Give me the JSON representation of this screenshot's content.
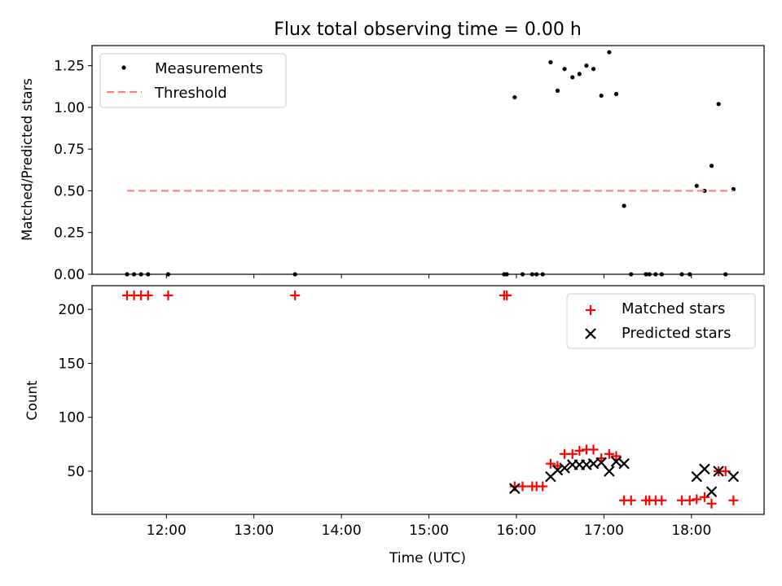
{
  "chart_data": [
    {
      "type": "scatter",
      "title": "Flux total observing time = 0.00 h",
      "xlabel": "",
      "ylabel": "Matched/Predicted stars",
      "ylim": [
        0,
        1.37
      ],
      "yticks": [
        0,
        0.25,
        0.5,
        0.75,
        1.0,
        1.25
      ],
      "ytick_labels": [
        "0.00",
        "0.25",
        "0.50",
        "0.75",
        "1.00",
        "1.25"
      ],
      "xlim": [
        11.15,
        18.83
      ],
      "xticks": [
        12,
        13,
        14,
        15,
        16,
        17,
        18
      ],
      "legend_position": "top-left",
      "series": [
        {
          "name": "Measurements",
          "marker": "dot",
          "color": "#000000",
          "points": [
            [
              11.55,
              0
            ],
            [
              11.63,
              0
            ],
            [
              11.71,
              0
            ],
            [
              11.79,
              0
            ],
            [
              12.02,
              0
            ],
            [
              13.47,
              0
            ],
            [
              15.86,
              0
            ],
            [
              15.89,
              0
            ],
            [
              15.98,
              1.06
            ],
            [
              16.07,
              0
            ],
            [
              16.18,
              0
            ],
            [
              16.23,
              0
            ],
            [
              16.3,
              0
            ],
            [
              16.39,
              1.27
            ],
            [
              16.47,
              1.1
            ],
            [
              16.55,
              1.23
            ],
            [
              16.64,
              1.18
            ],
            [
              16.72,
              1.2
            ],
            [
              16.8,
              1.25
            ],
            [
              16.88,
              1.23
            ],
            [
              16.97,
              1.07
            ],
            [
              17.06,
              1.33
            ],
            [
              17.14,
              1.08
            ],
            [
              17.23,
              0.41
            ],
            [
              17.31,
              0
            ],
            [
              17.48,
              0
            ],
            [
              17.52,
              0
            ],
            [
              17.59,
              0
            ],
            [
              17.66,
              0
            ],
            [
              17.89,
              0
            ],
            [
              17.98,
              0
            ],
            [
              18.06,
              0.53
            ],
            [
              18.15,
              0.5
            ],
            [
              18.23,
              0.65
            ],
            [
              18.31,
              1.02
            ],
            [
              18.39,
              0
            ],
            [
              18.48,
              0.51
            ]
          ]
        },
        {
          "name": "Threshold",
          "style": "dashed",
          "color": "#ff7f7f",
          "points": [
            [
              11.55,
              0.5
            ],
            [
              18.48,
              0.5
            ]
          ]
        }
      ]
    },
    {
      "type": "scatter",
      "title": "",
      "xlabel": "Time (UTC)",
      "ylabel": "Count",
      "ylim": [
        10,
        222
      ],
      "yticks": [
        50,
        100,
        150,
        200
      ],
      "ytick_labels": [
        "50",
        "100",
        "150",
        "200"
      ],
      "xlim": [
        11.15,
        18.83
      ],
      "xticks": [
        12,
        13,
        14,
        15,
        16,
        17,
        18
      ],
      "xtick_labels": [
        "12:00",
        "13:00",
        "14:00",
        "15:00",
        "16:00",
        "17:00",
        "18:00"
      ],
      "legend_position": "top-right",
      "series": [
        {
          "name": "Matched stars",
          "marker": "plus",
          "color": "#ff0000",
          "points": [
            [
              11.55,
              213
            ],
            [
              11.63,
              213
            ],
            [
              11.71,
              213
            ],
            [
              11.79,
              213
            ],
            [
              12.02,
              213
            ],
            [
              13.47,
              213
            ],
            [
              15.86,
              213
            ],
            [
              15.89,
              213
            ],
            [
              15.98,
              36
            ],
            [
              16.07,
              36
            ],
            [
              16.18,
              36
            ],
            [
              16.23,
              36
            ],
            [
              16.3,
              36
            ],
            [
              16.39,
              57
            ],
            [
              16.47,
              55
            ],
            [
              16.55,
              66
            ],
            [
              16.64,
              66
            ],
            [
              16.72,
              69
            ],
            [
              16.8,
              70
            ],
            [
              16.88,
              70
            ],
            [
              16.97,
              62
            ],
            [
              17.06,
              66
            ],
            [
              17.14,
              64
            ],
            [
              17.23,
              23
            ],
            [
              17.31,
              23
            ],
            [
              17.48,
              23
            ],
            [
              17.52,
              23
            ],
            [
              17.59,
              23
            ],
            [
              17.66,
              23
            ],
            [
              17.89,
              23
            ],
            [
              17.98,
              23
            ],
            [
              18.06,
              24
            ],
            [
              18.15,
              26
            ],
            [
              18.23,
              20
            ],
            [
              18.31,
              50
            ],
            [
              18.39,
              50
            ],
            [
              18.48,
              23
            ]
          ]
        },
        {
          "name": "Predicted stars",
          "marker": "x",
          "color": "#000000",
          "points": [
            [
              15.98,
              34
            ],
            [
              16.39,
              45
            ],
            [
              16.47,
              51
            ],
            [
              16.55,
              53
            ],
            [
              16.64,
              56
            ],
            [
              16.72,
              56
            ],
            [
              16.8,
              56
            ],
            [
              16.88,
              57
            ],
            [
              16.97,
              58
            ],
            [
              17.06,
              50
            ],
            [
              17.14,
              59
            ],
            [
              17.23,
              57
            ],
            [
              18.06,
              45
            ],
            [
              18.15,
              52
            ],
            [
              18.23,
              31
            ],
            [
              18.31,
              50
            ],
            [
              18.48,
              45
            ]
          ]
        }
      ]
    }
  ]
}
